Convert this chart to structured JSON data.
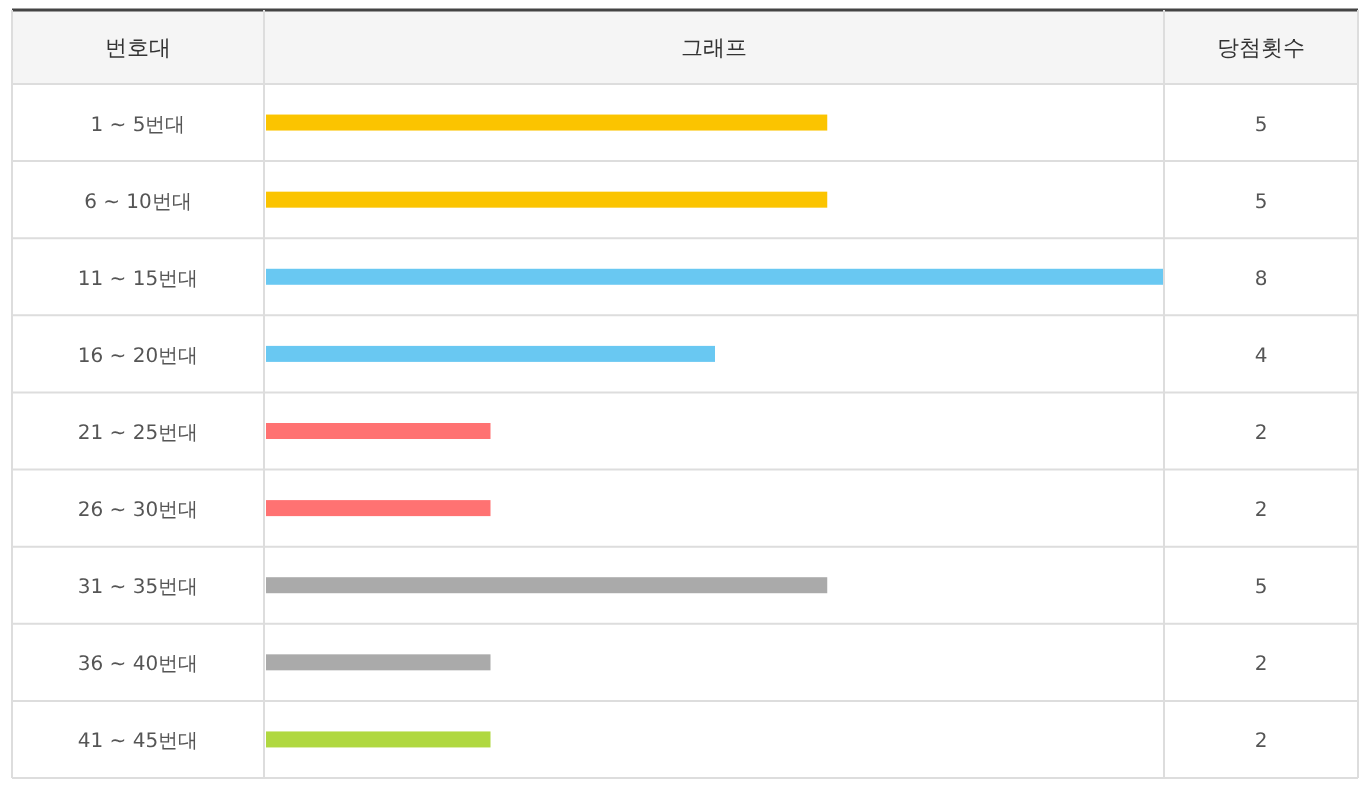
{
  "chart_data": {
    "type": "bar",
    "orientation": "horizontal",
    "ylabel": "번호대",
    "xlabel": "그래프",
    "annotations": [
      "당첨횟수"
    ],
    "categories": [
      "1 ~ 5번대",
      "6 ~ 10번대",
      "11 ~ 15번대",
      "16 ~ 20번대",
      "21 ~ 25번대",
      "26 ~ 30번대",
      "31 ~ 35번대",
      "36 ~ 40번대",
      "41 ~ 45번대"
    ],
    "values": [
      5,
      5,
      8,
      4,
      2,
      2,
      5,
      2,
      2
    ],
    "colors": [
      "#fbc400",
      "#fbc400",
      "#69c8f2",
      "#69c8f2",
      "#ff7272",
      "#ff7272",
      "#aaaaaa",
      "#aaaaaa",
      "#b0d840"
    ],
    "data_labels": true
  }
}
